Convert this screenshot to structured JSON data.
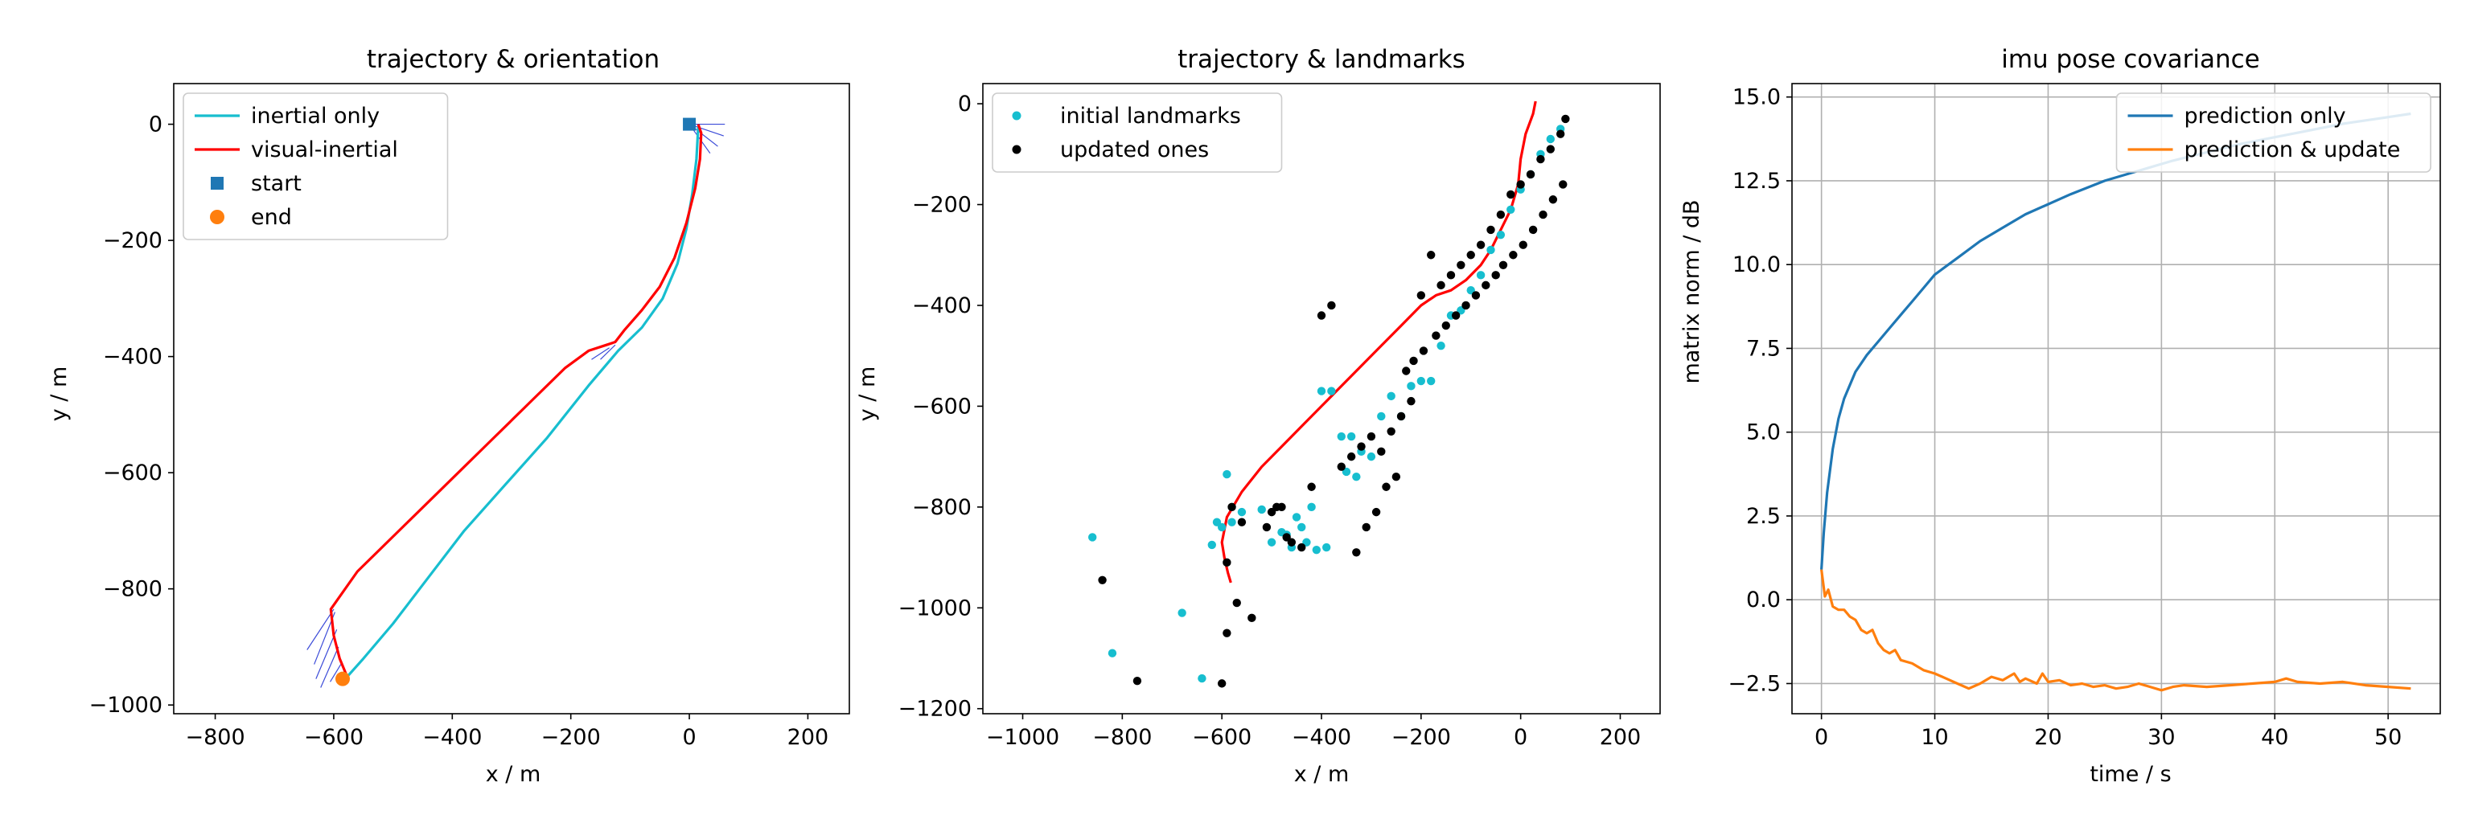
{
  "chart_data": [
    {
      "type": "line",
      "title": "trajectory & orientation",
      "xlabel": "x / m",
      "ylabel": "y / m",
      "xlim": [
        -870,
        270
      ],
      "ylim": [
        -1015,
        70
      ],
      "xticks": [
        -800,
        -600,
        -400,
        -200,
        0,
        200
      ],
      "yticks": [
        0,
        -200,
        -400,
        -600,
        -800,
        -1000
      ],
      "xtick_labels": [
        "−800",
        "−600",
        "−400",
        "−200",
        "0",
        "200"
      ],
      "ytick_labels": [
        "0",
        "−200",
        "−400",
        "−600",
        "−800",
        "−1000"
      ],
      "grid": false,
      "legend_position": "top-left",
      "legend": [
        {
          "label": "inertial only",
          "kind": "line",
          "color": "#17becf"
        },
        {
          "label": "visual-inertial",
          "kind": "line",
          "color": "#ff0000"
        },
        {
          "label": "start",
          "kind": "square",
          "color": "#1f77b4"
        },
        {
          "label": "end",
          "kind": "circle",
          "color": "#ff7f0e"
        }
      ],
      "series": [
        {
          "name": "inertial only",
          "color": "#17becf",
          "x": [
            15,
            12,
            5,
            -5,
            -20,
            -45,
            -80,
            -120,
            -170,
            -240,
            -310,
            -380,
            -440,
            -500,
            -550,
            -585
          ],
          "y": [
            -5,
            -60,
            -120,
            -180,
            -240,
            -300,
            -350,
            -390,
            -450,
            -540,
            -620,
            -700,
            -780,
            -860,
            -920,
            -960
          ]
        },
        {
          "name": "visual-inertial",
          "color": "#ff0000",
          "x": [
            15,
            20,
            18,
            10,
            -5,
            -25,
            -50,
            -80,
            -110,
            -125,
            -140,
            -170,
            -210,
            -270,
            -340,
            -420,
            -490,
            -560,
            -605,
            -600,
            -590,
            -578
          ],
          "y": [
            0,
            -15,
            -60,
            -110,
            -170,
            -230,
            -280,
            -320,
            -355,
            -375,
            -380,
            -390,
            -420,
            -480,
            -550,
            -630,
            -700,
            -770,
            -835,
            -880,
            -920,
            -950
          ]
        }
      ],
      "markers": [
        {
          "name": "start",
          "shape": "square",
          "color": "#1f77b4",
          "x": 0,
          "y": 0
        },
        {
          "name": "end",
          "shape": "circle",
          "color": "#ff7f0e",
          "x": -585,
          "y": -955
        }
      ],
      "orientation_arrows": [
        {
          "x": 0,
          "y": 0,
          "dx": 60,
          "dy": 0
        },
        {
          "x": 0,
          "y": 0,
          "dx": 58,
          "dy": -20
        },
        {
          "x": 0,
          "y": 0,
          "dx": 48,
          "dy": -38
        },
        {
          "x": 0,
          "y": 0,
          "dx": 35,
          "dy": -50
        },
        {
          "x": -125,
          "y": -380,
          "dx": -25,
          "dy": -25
        },
        {
          "x": -135,
          "y": -385,
          "dx": -30,
          "dy": -20
        },
        {
          "x": -600,
          "y": -835,
          "dx": -45,
          "dy": -70
        },
        {
          "x": -598,
          "y": -840,
          "dx": -35,
          "dy": -90
        },
        {
          "x": -595,
          "y": -870,
          "dx": -35,
          "dy": -85
        },
        {
          "x": -592,
          "y": -900,
          "dx": -30,
          "dy": -70
        },
        {
          "x": -588,
          "y": -930,
          "dx": -18,
          "dy": -30
        }
      ]
    },
    {
      "type": "scatter",
      "title": "trajectory & landmarks",
      "xlabel": "x / m",
      "ylabel": "y / m",
      "xlim": [
        -1080,
        280
      ],
      "ylim": [
        -1210,
        40
      ],
      "xticks": [
        -1000,
        -800,
        -600,
        -400,
        -200,
        0,
        200
      ],
      "yticks": [
        0,
        -200,
        -400,
        -600,
        -800,
        -1000,
        -1200
      ],
      "xtick_labels": [
        "−1000",
        "−800",
        "−600",
        "−400",
        "−200",
        "0",
        "200"
      ],
      "ytick_labels": [
        "0",
        "−200",
        "−400",
        "−600",
        "−800",
        "−1000",
        "−1200"
      ],
      "grid": false,
      "legend_position": "top-left",
      "legend": [
        {
          "label": "initial landmarks",
          "kind": "dot",
          "color": "#17becf"
        },
        {
          "label": "updated ones",
          "kind": "dot",
          "color": "#000000"
        }
      ],
      "series": [
        {
          "name": "trajectory",
          "kind": "line",
          "color": "#ff0000",
          "x": [
            30,
            25,
            10,
            0,
            -5,
            -20,
            -40,
            -60,
            -80,
            -110,
            -140,
            -170,
            -200,
            -240,
            -280,
            -320,
            -360,
            -400,
            -440,
            -480,
            -520,
            -560,
            -590,
            -600,
            -595,
            -588,
            -582
          ],
          "y": [
            5,
            -20,
            -60,
            -110,
            -160,
            -210,
            -250,
            -290,
            -320,
            -350,
            -370,
            -380,
            -400,
            -440,
            -480,
            -520,
            -560,
            -600,
            -640,
            -680,
            -720,
            -770,
            -820,
            -870,
            -900,
            -930,
            -950
          ]
        },
        {
          "name": "initial landmarks",
          "kind": "points",
          "color": "#17becf",
          "x": [
            -860,
            -820,
            -680,
            -640,
            -620,
            -600,
            -590,
            -610,
            -580,
            -560,
            -520,
            -500,
            -480,
            -460,
            -440,
            -420,
            -400,
            -380,
            -360,
            -340,
            -320,
            -300,
            -280,
            -260,
            -240,
            -220,
            -200,
            -180,
            -160,
            -140,
            -120,
            -100,
            -80,
            -60,
            -40,
            -20,
            0,
            20,
            40,
            60,
            80,
            -430,
            -470,
            -450,
            -410,
            -390,
            -350,
            -330
          ],
          "y": [
            -860,
            -1090,
            -1010,
            -1140,
            -875,
            -840,
            -735,
            -830,
            -830,
            -810,
            -805,
            -870,
            -850,
            -880,
            -840,
            -800,
            -570,
            -570,
            -660,
            -660,
            -690,
            -700,
            -620,
            -580,
            -620,
            -560,
            -550,
            -550,
            -480,
            -420,
            -410,
            -370,
            -340,
            -290,
            -260,
            -210,
            -170,
            -140,
            -100,
            -70,
            -50,
            -870,
            -855,
            -820,
            -885,
            -880,
            -730,
            -740
          ]
        },
        {
          "name": "updated ones",
          "kind": "points",
          "color": "#000000",
          "x": [
            -840,
            -770,
            -600,
            -590,
            -580,
            -570,
            -540,
            -500,
            -480,
            -460,
            -440,
            -420,
            -400,
            -380,
            -360,
            -340,
            -320,
            -300,
            -280,
            -260,
            -240,
            -220,
            -200,
            -180,
            -160,
            -140,
            -120,
            -100,
            -80,
            -60,
            -40,
            -20,
            0,
            20,
            40,
            60,
            80,
            90,
            -590,
            -560,
            -510,
            -490,
            -470,
            -330,
            -310,
            -290,
            -270,
            -250,
            -230,
            -215,
            -195,
            -170,
            -150,
            -130,
            -110,
            -90,
            -70,
            -50,
            -35,
            -15,
            5,
            25,
            45,
            65,
            85
          ],
          "y": [
            -945,
            -1145,
            -1150,
            -910,
            -800,
            -990,
            -1020,
            -810,
            -800,
            -870,
            -880,
            -760,
            -420,
            -400,
            -720,
            -700,
            -680,
            -660,
            -690,
            -650,
            -620,
            -590,
            -380,
            -300,
            -360,
            -340,
            -320,
            -300,
            -280,
            -250,
            -220,
            -180,
            -160,
            -140,
            -110,
            -90,
            -60,
            -30,
            -1050,
            -830,
            -840,
            -800,
            -860,
            -890,
            -840,
            -810,
            -760,
            -740,
            -530,
            -510,
            -490,
            -460,
            -440,
            -420,
            -400,
            -380,
            -360,
            -340,
            -320,
            -300,
            -280,
            -250,
            -220,
            -190,
            -160
          ]
        }
      ]
    },
    {
      "type": "line",
      "title": "imu pose covariance",
      "xlabel": "time / s",
      "ylabel": "matrix norm / dB",
      "xlim": [
        -2.6,
        54.6
      ],
      "ylim": [
        -3.4,
        15.4
      ],
      "xticks": [
        0,
        10,
        20,
        30,
        40,
        50
      ],
      "yticks": [
        -2.5,
        0.0,
        2.5,
        5.0,
        7.5,
        10.0,
        12.5,
        15.0
      ],
      "xtick_labels": [
        "0",
        "10",
        "20",
        "30",
        "40",
        "50"
      ],
      "ytick_labels": [
        "−2.5",
        "0.0",
        "2.5",
        "5.0",
        "7.5",
        "10.0",
        "12.5",
        "15.0"
      ],
      "grid": true,
      "legend_position": "top-right",
      "legend": [
        {
          "label": "prediction only",
          "kind": "line",
          "color": "#1f77b4"
        },
        {
          "label": "prediction & update",
          "kind": "line",
          "color": "#ff7f0e"
        }
      ],
      "series": [
        {
          "name": "prediction only",
          "color": "#1f77b4",
          "x": [
            0,
            0.2,
            0.5,
            1,
            1.5,
            2,
            3,
            4,
            5,
            6,
            7,
            8,
            9,
            10,
            12,
            14,
            16,
            18,
            20,
            22,
            25,
            28,
            31,
            34,
            37,
            40,
            43,
            46,
            49,
            52
          ],
          "y": [
            0.9,
            2.0,
            3.2,
            4.5,
            5.4,
            6.0,
            6.8,
            7.3,
            7.7,
            8.1,
            8.5,
            8.9,
            9.3,
            9.7,
            10.2,
            10.7,
            11.1,
            11.5,
            11.8,
            12.1,
            12.5,
            12.8,
            13.1,
            13.35,
            13.6,
            13.8,
            14.0,
            14.2,
            14.35,
            14.5
          ]
        },
        {
          "name": "prediction & update",
          "color": "#ff7f0e",
          "x": [
            0,
            0.3,
            0.6,
            1,
            1.5,
            2,
            2.5,
            3,
            3.5,
            4,
            4.5,
            5,
            5.5,
            6,
            6.5,
            7,
            8,
            9,
            10,
            11,
            12,
            13,
            14,
            15,
            16,
            16.5,
            17,
            17.5,
            18,
            19,
            19.5,
            20,
            21,
            22,
            23,
            24,
            25,
            26,
            27,
            28,
            29,
            30,
            31,
            32,
            34,
            36,
            38,
            40,
            41,
            42,
            44,
            46,
            48,
            50,
            52
          ],
          "y": [
            0.9,
            0.1,
            0.3,
            -0.2,
            -0.3,
            -0.3,
            -0.5,
            -0.6,
            -0.9,
            -1.0,
            -0.9,
            -1.3,
            -1.5,
            -1.6,
            -1.5,
            -1.8,
            -1.9,
            -2.1,
            -2.2,
            -2.35,
            -2.5,
            -2.65,
            -2.5,
            -2.3,
            -2.4,
            -2.3,
            -2.2,
            -2.45,
            -2.35,
            -2.5,
            -2.2,
            -2.45,
            -2.4,
            -2.55,
            -2.5,
            -2.6,
            -2.55,
            -2.65,
            -2.6,
            -2.5,
            -2.6,
            -2.7,
            -2.6,
            -2.55,
            -2.6,
            -2.55,
            -2.5,
            -2.45,
            -2.35,
            -2.45,
            -2.5,
            -2.45,
            -2.55,
            -2.6,
            -2.65
          ]
        }
      ]
    }
  ]
}
